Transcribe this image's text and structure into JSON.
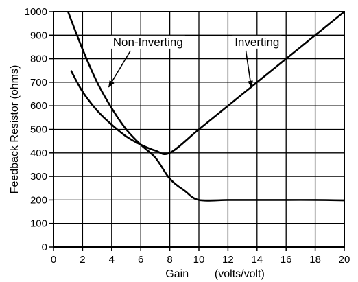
{
  "chart_data": {
    "type": "line",
    "xlabel": "Gain",
    "xlabel_unit": "(volts/volt)",
    "ylabel": "Feedback Resistor (ohms)",
    "xlim": [
      0,
      20
    ],
    "ylim": [
      0,
      1000
    ],
    "x_ticks": [
      0,
      2,
      4,
      6,
      8,
      10,
      12,
      14,
      16,
      18,
      20
    ],
    "y_ticks": [
      0,
      100,
      200,
      300,
      400,
      500,
      600,
      700,
      800,
      900,
      1000
    ],
    "grid": true,
    "legend": "none",
    "series": [
      {
        "name": "Non-Inverting",
        "points": [
          [
            1,
            1000
          ],
          [
            2,
            840
          ],
          [
            3,
            700
          ],
          [
            4,
            590
          ],
          [
            5,
            500
          ],
          [
            6,
            435
          ],
          [
            7,
            380
          ],
          [
            8,
            290
          ],
          [
            9,
            240
          ],
          [
            10,
            200
          ],
          [
            12,
            200
          ],
          [
            14,
            200
          ],
          [
            16,
            200
          ],
          [
            18,
            200
          ],
          [
            20,
            198
          ]
        ]
      },
      {
        "name": "Inverting",
        "points": [
          [
            1.2,
            750
          ],
          [
            2,
            660
          ],
          [
            3,
            580
          ],
          [
            4,
            520
          ],
          [
            5,
            470
          ],
          [
            6,
            435
          ],
          [
            7,
            410
          ],
          [
            8,
            400
          ],
          [
            10,
            500
          ],
          [
            12,
            600
          ],
          [
            14,
            700
          ],
          [
            16,
            800
          ],
          [
            18,
            900
          ],
          [
            20,
            1000
          ]
        ]
      }
    ],
    "annotations": [
      {
        "text": "Non-Inverting",
        "x": 6.5,
        "y": 840,
        "arrow_to": [
          3.8,
          680
        ]
      },
      {
        "text": "Inverting",
        "x": 14,
        "y": 840,
        "arrow_to": [
          13.6,
          680
        ]
      }
    ]
  }
}
